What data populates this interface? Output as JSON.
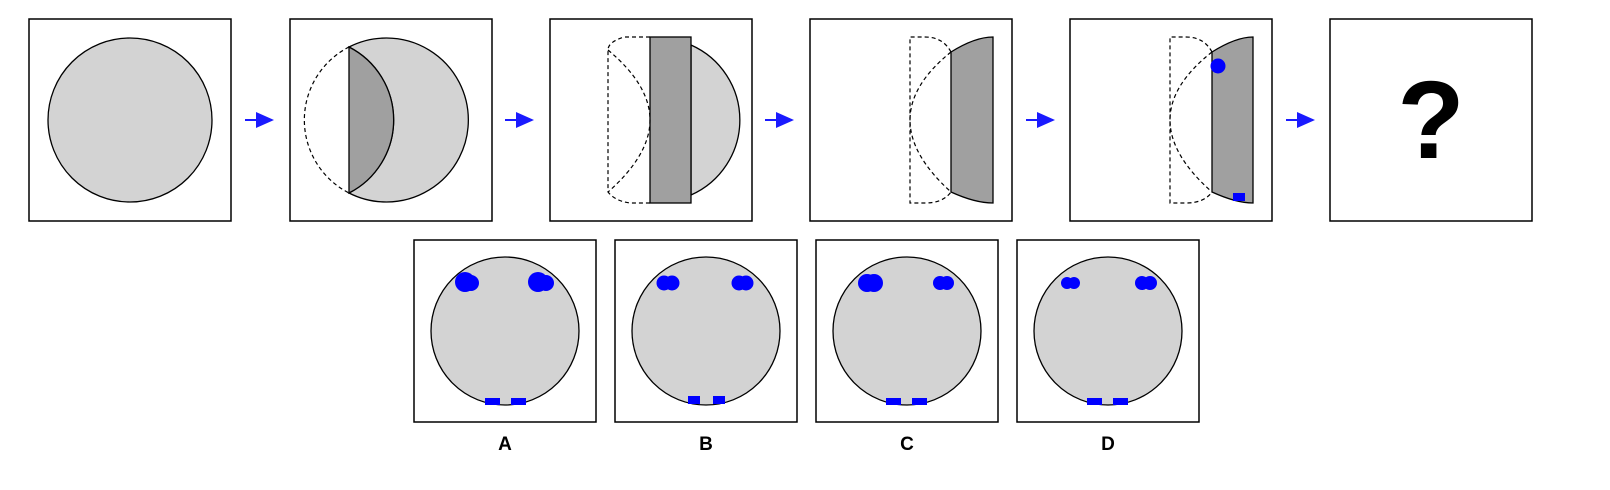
{
  "question_mark": "?",
  "options": [
    {
      "label": "A"
    },
    {
      "label": "B"
    },
    {
      "label": "C"
    },
    {
      "label": "D"
    }
  ],
  "colors": {
    "circle_fill": "#d3d3d3",
    "fold_fill": "#a0a0a0",
    "punch": "#0000ff",
    "arrow": "#1a1aff",
    "stroke": "#000000"
  }
}
